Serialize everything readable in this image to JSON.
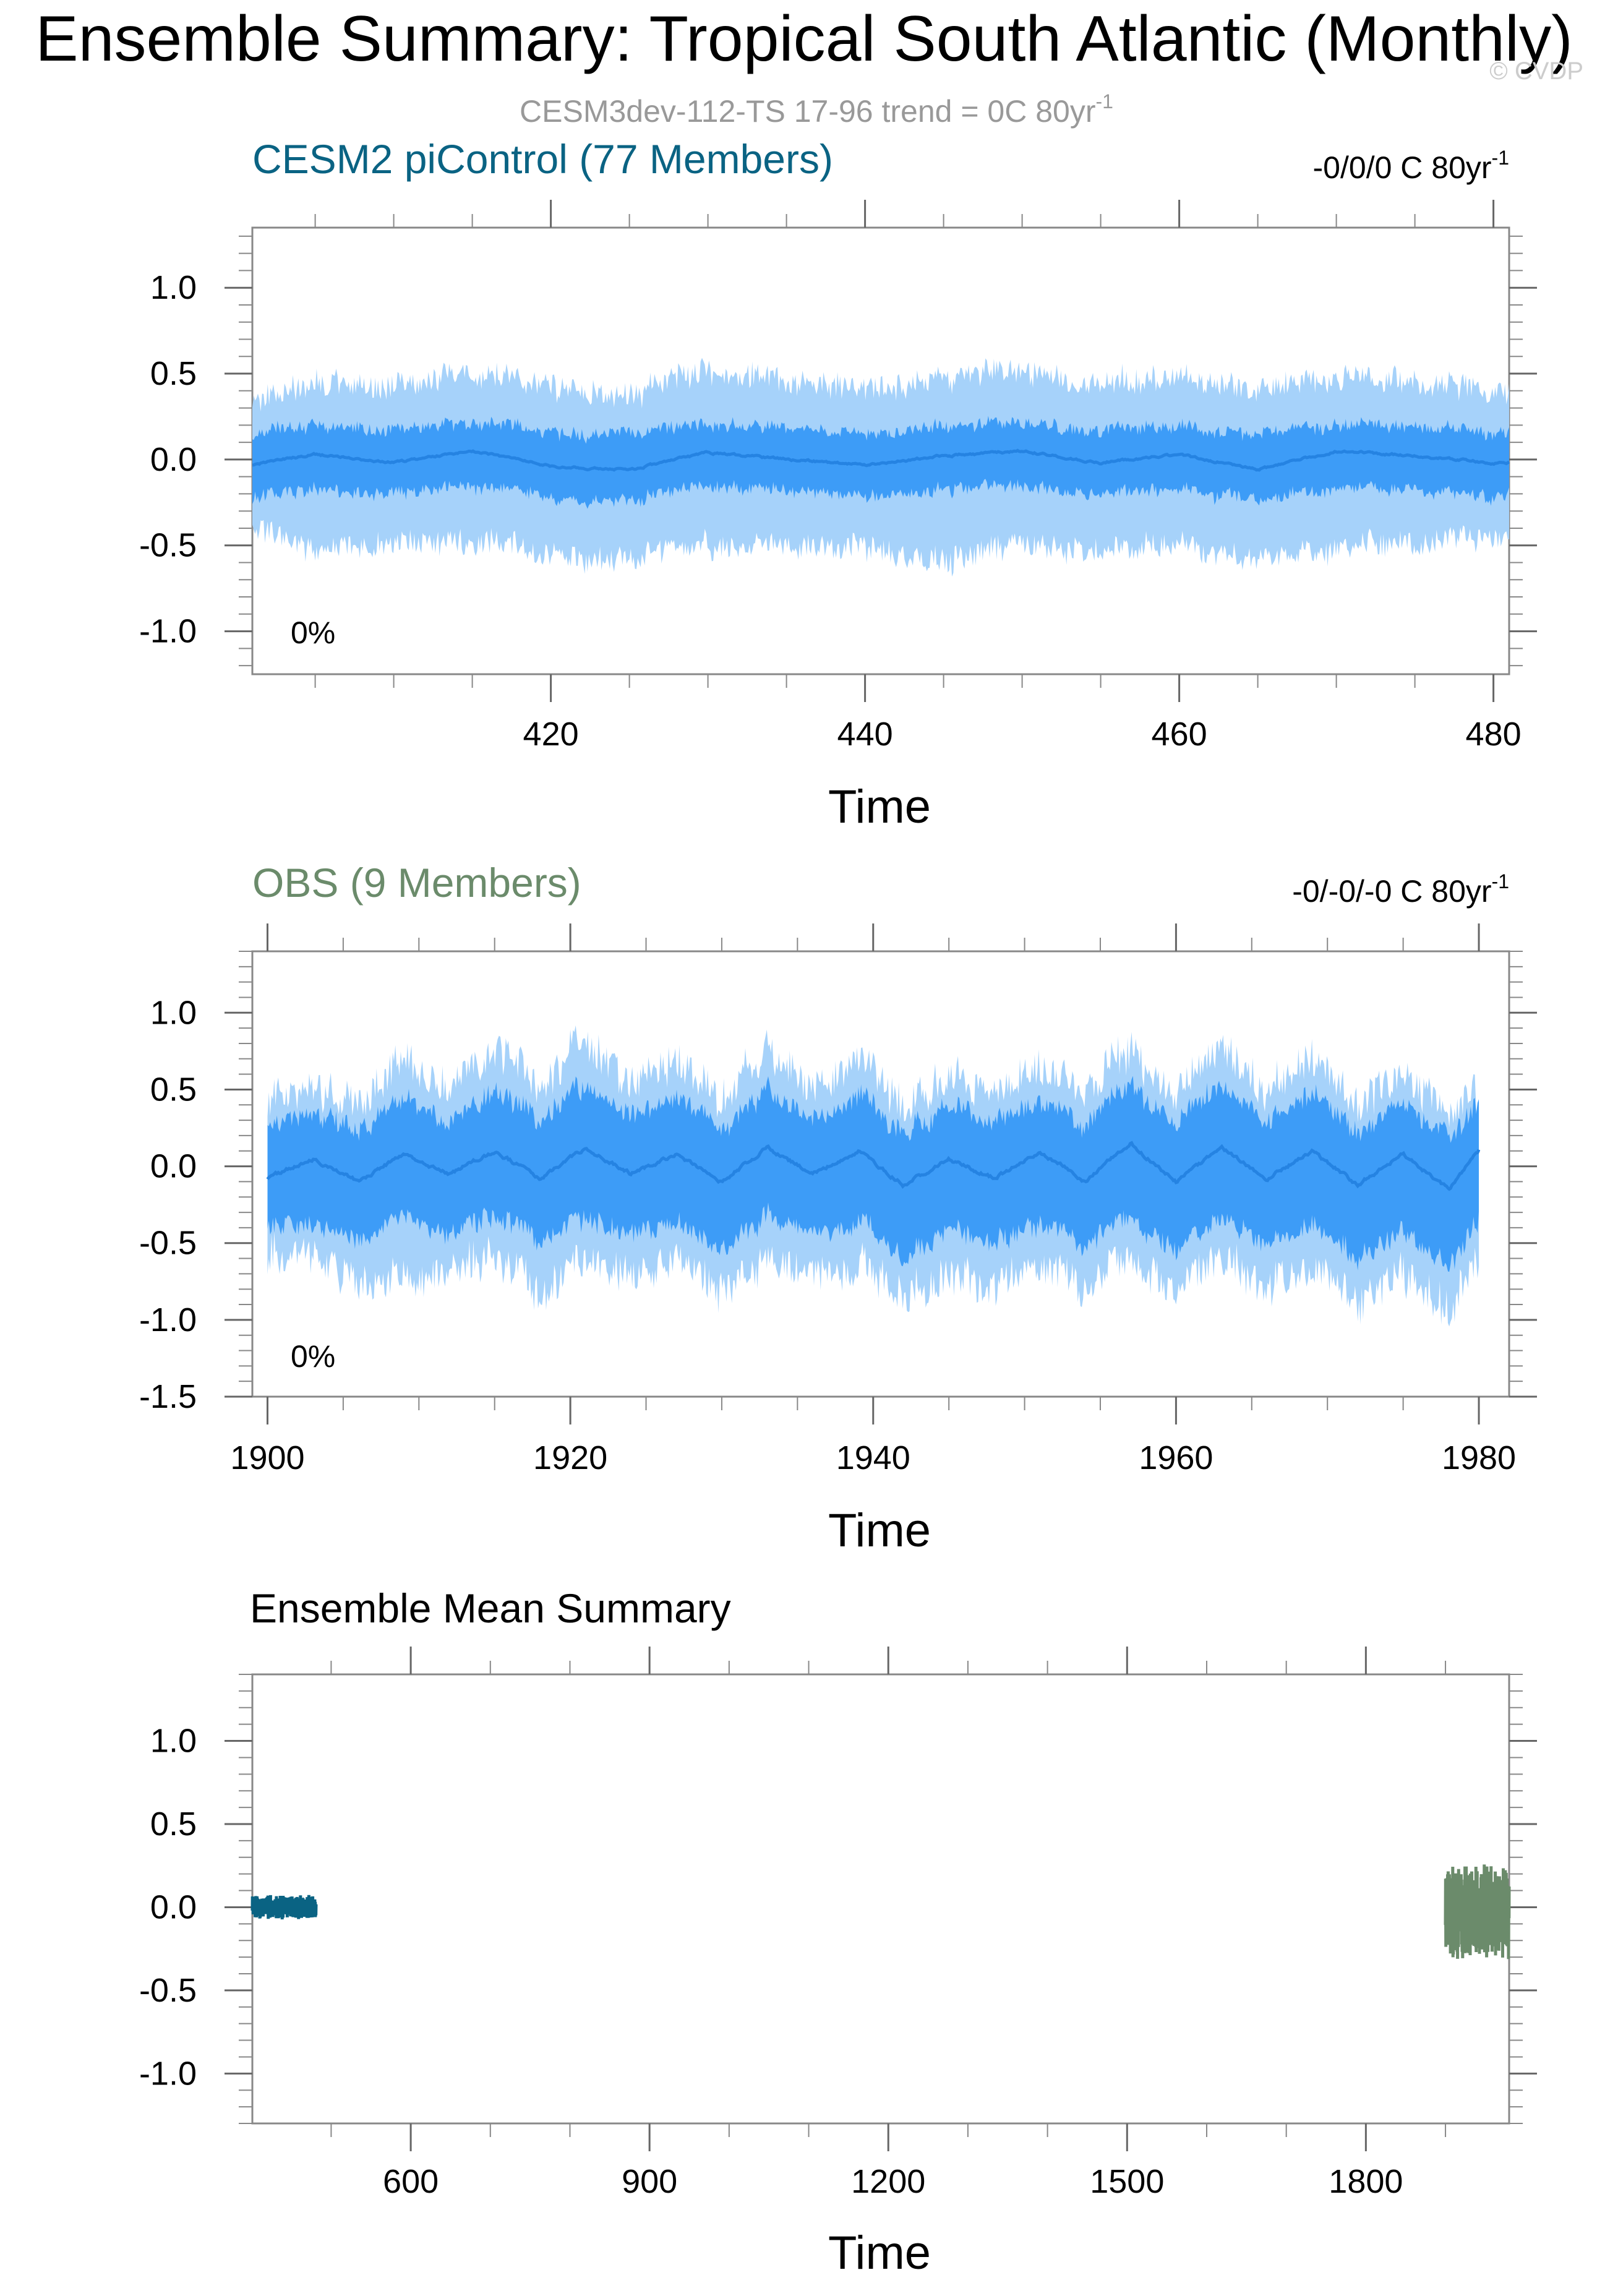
{
  "page": {
    "title": "Ensemble Summary: Tropical South Atlantic (Monthly)",
    "subtitle": "CESM3dev-112-TS 17-96 trend = 0C 80yr",
    "subtitle_sup": "-1",
    "watermark": "© CVDP"
  },
  "colors": {
    "band_outer": "#a6d2fa",
    "band_inner": "#3d9cf7",
    "mean_line": "#2583e2",
    "model_color": "#0a6383",
    "obs_color": "#6b8b6b",
    "axis": "#000000",
    "subtitle": "#999999"
  },
  "chart_data": [
    {
      "id": "cesm2",
      "type": "area",
      "title": "CESM2 piControl (77 Members)",
      "title_color": "#0a6383",
      "trend_label": "-0/0/0 C 80yr",
      "trend_sup": "-1",
      "pct_label": "0%",
      "xlabel": "Time",
      "ylabel": "",
      "xlim": [
        401,
        481
      ],
      "ylim": [
        -1.25,
        1.35
      ],
      "xticks": [
        420,
        440,
        460,
        480
      ],
      "yticks": [
        -1.0,
        -0.5,
        0.0,
        0.5,
        1.0
      ],
      "ytick_labels": [
        "-1.0",
        "-0.5",
        "0.0",
        "0.5",
        "1.0"
      ],
      "x_start": 401,
      "x_end": 481,
      "series": {
        "x": [
          401,
          405,
          410,
          415,
          420,
          425,
          430,
          435,
          440,
          445,
          450,
          455,
          460,
          465,
          470,
          475,
          480
        ],
        "mean": [
          -0.03,
          0.03,
          -0.02,
          0.05,
          -0.04,
          -0.06,
          0.04,
          0.0,
          -0.03,
          0.02,
          0.05,
          -0.02,
          0.03,
          -0.06,
          0.05,
          0.02,
          -0.02
        ],
        "inner_upper": [
          0.15,
          0.2,
          0.17,
          0.21,
          0.16,
          0.15,
          0.2,
          0.18,
          0.16,
          0.19,
          0.22,
          0.17,
          0.19,
          0.14,
          0.21,
          0.19,
          0.16
        ],
        "inner_lower": [
          -0.22,
          -0.18,
          -0.2,
          -0.16,
          -0.22,
          -0.24,
          -0.16,
          -0.19,
          -0.21,
          -0.18,
          -0.15,
          -0.2,
          -0.17,
          -0.24,
          -0.16,
          -0.18,
          -0.21
        ],
        "outer_upper": [
          0.32,
          0.45,
          0.42,
          0.5,
          0.42,
          0.38,
          0.5,
          0.45,
          0.42,
          0.46,
          0.52,
          0.44,
          0.48,
          0.4,
          0.5,
          0.45,
          0.4
        ],
        "outer_lower": [
          -0.4,
          -0.52,
          -0.5,
          -0.48,
          -0.55,
          -0.58,
          -0.5,
          -0.52,
          -0.5,
          -0.6,
          -0.48,
          -0.52,
          -0.5,
          -0.6,
          -0.5,
          -0.48,
          -0.45
        ]
      },
      "noise": {
        "mean": 0.015,
        "inner": 0.05,
        "outer": 0.07
      }
    },
    {
      "id": "obs",
      "type": "area",
      "title": "OBS (9 Members)",
      "title_color": "#6b8b6b",
      "trend_label": "-0/-0/-0 C 80yr",
      "trend_sup": "-1",
      "pct_label": "0%",
      "xlabel": "Time",
      "ylabel": "",
      "xlim": [
        1899,
        1982
      ],
      "ylim": [
        -1.5,
        1.4
      ],
      "xticks": [
        1900,
        1920,
        1940,
        1960,
        1980
      ],
      "yticks": [
        -1.5,
        -1.0,
        -0.5,
        0.0,
        0.5,
        1.0
      ],
      "ytick_labels": [
        "-1.5",
        "-1.0",
        "-0.5",
        "0.0",
        "0.5",
        "1.0"
      ],
      "x_start": 1900,
      "x_end": 1980,
      "series": {
        "x": [
          1900,
          1903,
          1906,
          1909,
          1912,
          1915,
          1918,
          1921,
          1924,
          1927,
          1930,
          1933,
          1936,
          1939,
          1942,
          1945,
          1948,
          1951,
          1954,
          1957,
          1960,
          1963,
          1966,
          1969,
          1972,
          1975,
          1978,
          1980
        ],
        "mean": [
          -0.08,
          0.05,
          -0.1,
          0.08,
          -0.05,
          0.1,
          -0.08,
          0.12,
          -0.05,
          0.08,
          -0.1,
          0.12,
          -0.05,
          0.1,
          -0.12,
          0.05,
          -0.08,
          0.1,
          -0.1,
          0.15,
          -0.1,
          0.12,
          -0.08,
          0.1,
          -0.12,
          0.08,
          -0.15,
          0.1
        ],
        "inner_upper": [
          0.25,
          0.38,
          0.22,
          0.45,
          0.28,
          0.5,
          0.28,
          0.55,
          0.32,
          0.45,
          0.25,
          0.5,
          0.3,
          0.48,
          0.22,
          0.4,
          0.28,
          0.45,
          0.25,
          0.55,
          0.28,
          0.52,
          0.3,
          0.48,
          0.22,
          0.42,
          0.18,
          0.38
        ],
        "inner_lower": [
          -0.42,
          -0.35,
          -0.5,
          -0.32,
          -0.45,
          -0.3,
          -0.5,
          -0.32,
          -0.45,
          -0.35,
          -0.55,
          -0.32,
          -0.45,
          -0.35,
          -0.58,
          -0.4,
          -0.5,
          -0.35,
          -0.52,
          -0.3,
          -0.55,
          -0.35,
          -0.5,
          -0.38,
          -0.6,
          -0.42,
          -0.65,
          -0.38
        ],
        "outer_upper": [
          0.4,
          0.55,
          0.38,
          0.72,
          0.5,
          0.8,
          0.5,
          0.82,
          0.55,
          0.7,
          0.45,
          0.75,
          0.5,
          0.72,
          0.4,
          0.62,
          0.5,
          0.68,
          0.45,
          0.78,
          0.48,
          0.75,
          0.5,
          0.7,
          0.4,
          0.62,
          0.35,
          0.45
        ],
        "outer_lower": [
          -0.6,
          -0.55,
          -0.78,
          -0.72,
          -0.7,
          -0.55,
          -0.85,
          -0.6,
          -0.72,
          -0.6,
          -0.8,
          -0.6,
          -0.72,
          -0.62,
          -0.85,
          -0.68,
          -0.78,
          -0.6,
          -0.8,
          -0.58,
          -0.82,
          -0.6,
          -0.78,
          -0.65,
          -0.9,
          -0.7,
          -0.95,
          -0.6
        ]
      },
      "noise": {
        "mean": 0.03,
        "inner": 0.09,
        "outer": 0.12
      }
    },
    {
      "id": "summary",
      "type": "line",
      "title": "Ensemble Mean Summary",
      "title_color": "#000000",
      "xlabel": "Time",
      "ylabel": "",
      "xlim": [
        401,
        1980
      ],
      "ylim": [
        -1.3,
        1.4
      ],
      "xticks": [
        600,
        900,
        1200,
        1500,
        1800
      ],
      "yticks": [
        -1.0,
        -0.5,
        0.0,
        0.5,
        1.0
      ],
      "ytick_labels": [
        "-1.0",
        "-0.5",
        "0.0",
        "0.5",
        "1.0"
      ],
      "series": [
        {
          "name": "",
          "color": "#0a6383",
          "x_start": 401,
          "x_end": 481,
          "center": 0.0,
          "amplitude": 0.07,
          "cycles": 80
        },
        {
          "name": "",
          "color": "#6b8b6b",
          "x_start": 1900,
          "x_end": 1980,
          "center": -0.03,
          "amplitude": 0.28,
          "cycles": 80
        }
      ]
    }
  ]
}
